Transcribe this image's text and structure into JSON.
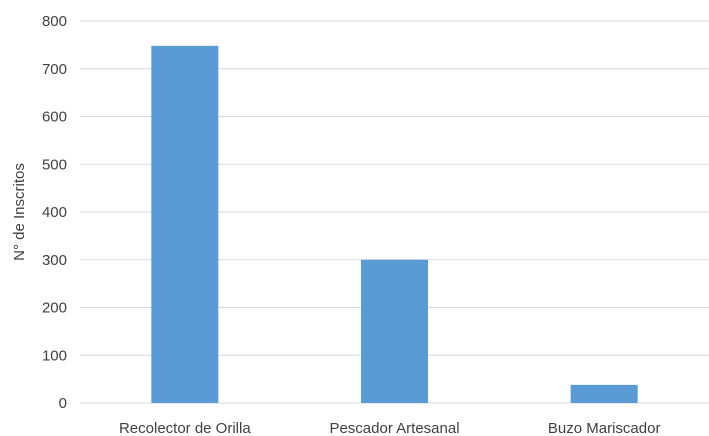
{
  "chart_data": {
    "type": "bar",
    "categories": [
      "Recolector de Orilla",
      "Pescador Artesanal",
      "Buzo Mariscador"
    ],
    "series": [
      {
        "values": [
          748,
          300,
          38
        ]
      }
    ],
    "ylabel": "N° de Inscritos",
    "xlabel": "",
    "ylim": [
      0,
      800
    ],
    "yticks": [
      0,
      100,
      200,
      300,
      400,
      500,
      600,
      700,
      800
    ],
    "grid": true,
    "legend": "none",
    "colors": {
      "bar": "#5B9BD5",
      "grid": "#D9D9D9",
      "text": "#404040"
    }
  }
}
